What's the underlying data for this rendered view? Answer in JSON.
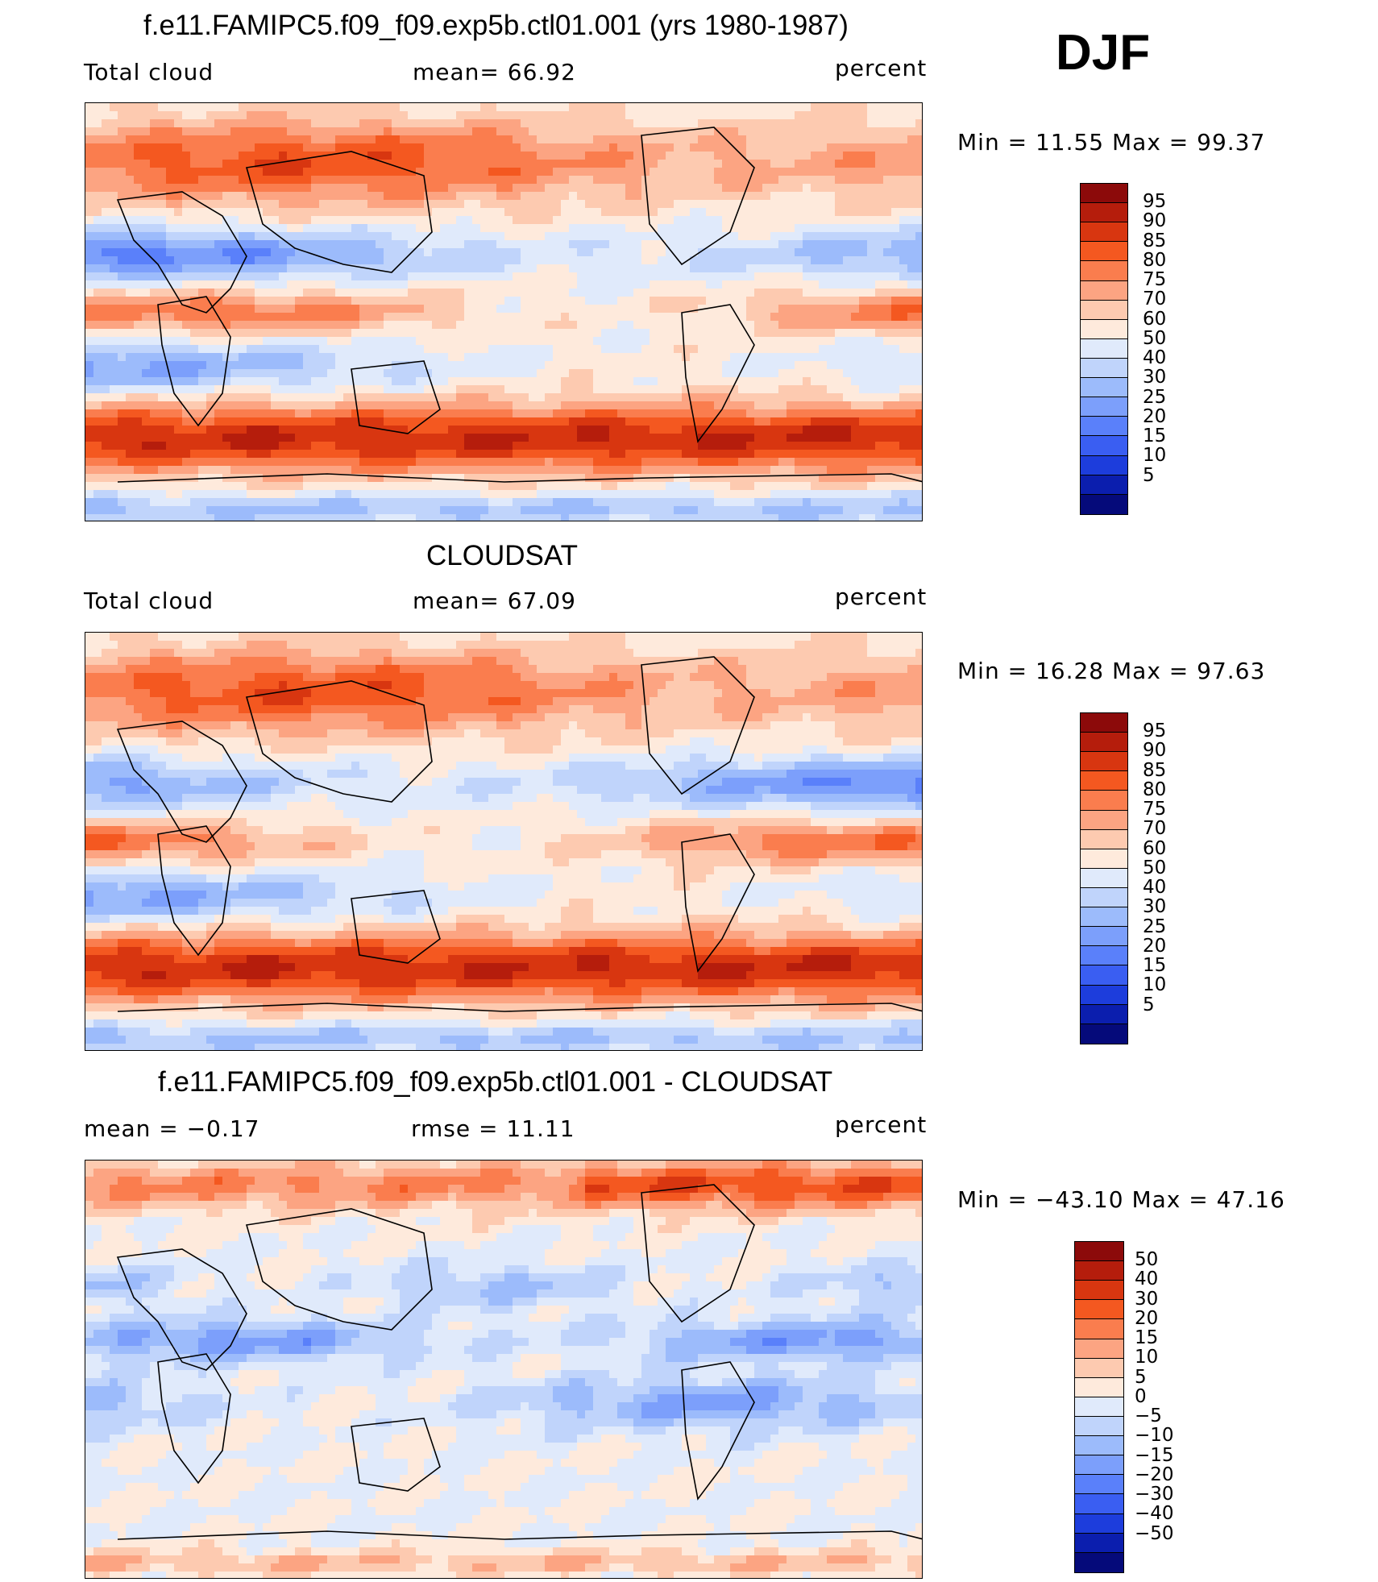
{
  "season": "DJF",
  "units": "percent",
  "colorbar_colors": {
    "full": [
      "#8c0a0a",
      "#b51d0c",
      "#d83610",
      "#f45820",
      "#fa7d4e",
      "#fca482",
      "#fdcab0",
      "#feeadc",
      "#e0eafb",
      "#c0d4fb",
      "#9cbbfb",
      "#7c9ffb",
      "#5a80fa",
      "#3a5ef2",
      "#1d3ddc",
      "#0b1eae",
      "#050a7a"
    ],
    "diff": [
      "#8c0a0a",
      "#b51d0c",
      "#d83610",
      "#f45820",
      "#fa7d4e",
      "#fca482",
      "#fdcab0",
      "#feeadc",
      "#e0eafb",
      "#c0d4fb",
      "#9cbbfb",
      "#7c9ffb",
      "#5a80fa",
      "#3a5ef2",
      "#1d3ddc",
      "#0b1eae",
      "#050a7a"
    ]
  },
  "chart_data": [
    {
      "type": "heatmap",
      "title": "f.e11.FAMIPC5.f09_f09.exp5b.ctl01.001 (yrs 1980-1987)",
      "left_label": "Total cloud",
      "center_label": "mean=   66.92",
      "right_label": "percent",
      "mean": 66.92,
      "min": 11.55,
      "max": 99.37,
      "minmax_text": "Min =   11.55 Max =   99.37",
      "colorbar_levels": [
        "95",
        "90",
        "85",
        "80",
        "75",
        "70",
        "60",
        "50",
        "40",
        "30",
        "25",
        "20",
        "15",
        "10",
        "5"
      ]
    },
    {
      "type": "heatmap",
      "title": "CLOUDSAT",
      "left_label": "Total cloud",
      "center_label": "mean=   67.09",
      "right_label": "percent",
      "mean": 67.09,
      "min": 16.28,
      "max": 97.63,
      "minmax_text": "Min =   16.28 Max =   97.63",
      "colorbar_levels": [
        "95",
        "90",
        "85",
        "80",
        "75",
        "70",
        "60",
        "50",
        "40",
        "30",
        "25",
        "20",
        "15",
        "10",
        "5"
      ]
    },
    {
      "type": "heatmap",
      "title": "f.e11.FAMIPC5.f09_f09.exp5b.ctl01.001 - CLOUDSAT",
      "left_label": "mean =   −0.17",
      "center_label": "rmse =   11.11",
      "right_label": "percent",
      "mean": -0.17,
      "rmse": 11.11,
      "min": -43.1,
      "max": 47.16,
      "minmax_text": "Min = −43.10 Max =   47.16",
      "colorbar_levels": [
        "50",
        "40",
        "30",
        "20",
        "15",
        "10",
        "5",
        "0",
        "−5",
        "−10",
        "−15",
        "−20",
        "−30",
        "−40",
        "−50"
      ]
    }
  ]
}
